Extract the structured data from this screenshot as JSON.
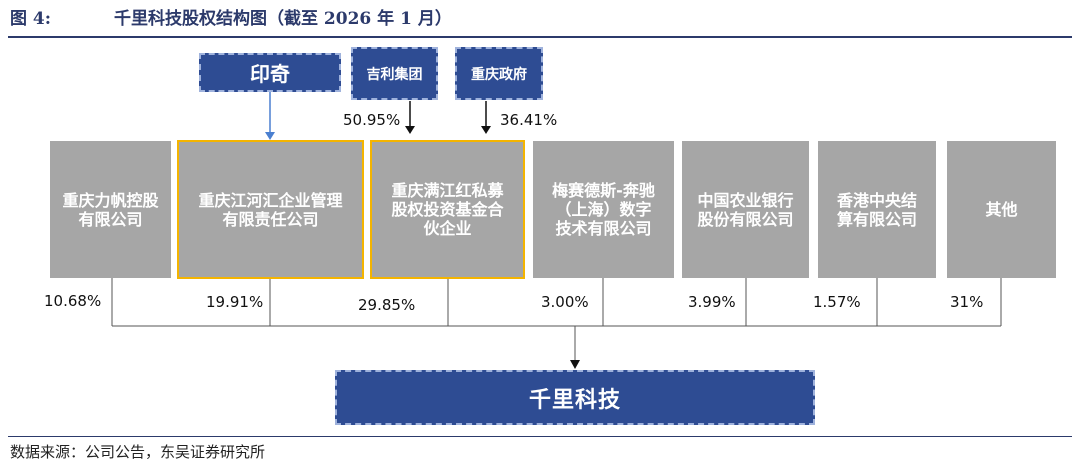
{
  "header": {
    "figure_label": "图 4:",
    "title": "千里科技股权结构图（截至 2026 年 1 月）"
  },
  "top_entities": [
    {
      "name": "印奇"
    },
    {
      "name": "吉利集团"
    },
    {
      "name": "重庆政府"
    }
  ],
  "intermediate_stakes": [
    {
      "holder": "吉利集团",
      "percent": "50.95%"
    },
    {
      "holder": "重庆政府",
      "percent": "36.41%"
    }
  ],
  "shareholders": [
    {
      "name": "重庆力帆控股\n有限公司",
      "percent": "10.68%"
    },
    {
      "name": "重庆江河汇企业管理\n有限责任公司",
      "percent": "19.91%"
    },
    {
      "name": "重庆满江红私募\n股权投资基金合\n伙企业",
      "percent": "29.85%"
    },
    {
      "name": "梅赛德斯-奔驰\n（上海）数字\n技术有限公司",
      "percent": "3.00%"
    },
    {
      "name": "中国农业银行\n股份有限公司",
      "percent": "3.99%"
    },
    {
      "name": "香港中央结\n算有限公司",
      "percent": "1.57%"
    },
    {
      "name": "其他",
      "percent": "31%"
    }
  ],
  "company": {
    "name": "千里科技"
  },
  "footer": {
    "source": "数据来源：公司公告，东吴证券研究所"
  },
  "colors": {
    "navy": "#2e4c93",
    "shareholder_gray": "#a6a6a6",
    "highlight_border": "#f4b400",
    "arrow_blue": "#4a7fd0"
  }
}
